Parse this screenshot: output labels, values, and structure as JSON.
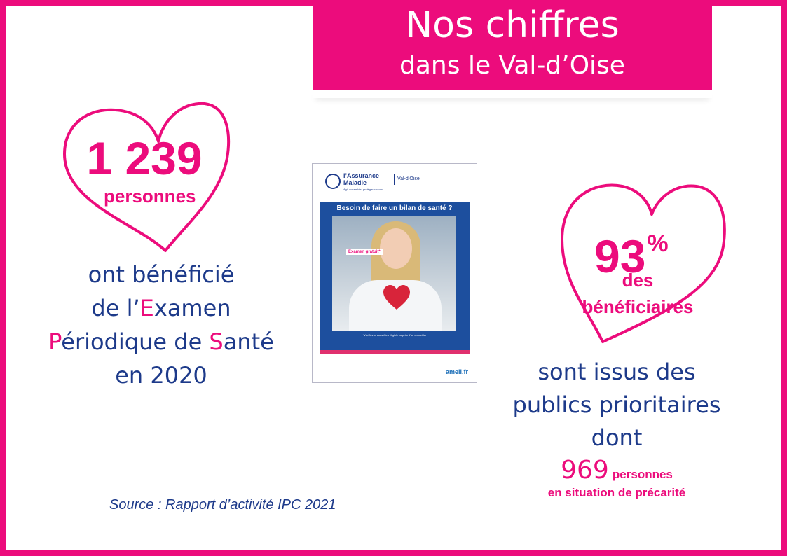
{
  "header": {
    "title_line1": "Nos chiffres",
    "title_line2": "dans le Val-d’Oise"
  },
  "stat1": {
    "number": "1 239",
    "unit": "personnes",
    "desc_line1": "ont bénéficié",
    "desc_line2_prefix": "de l’",
    "desc_line2_initial": "E",
    "desc_line2_rest": "xamen",
    "desc_line3_initial1": "P",
    "desc_line3_mid": "ériodique de ",
    "desc_line3_initial2": "S",
    "desc_line3_rest": "anté",
    "desc_line4": "en 2020"
  },
  "stat2": {
    "number": "93",
    "percent": "%",
    "unit_line1": "des",
    "unit_line2": "bénéficiaires",
    "desc_line1": "sont issus des",
    "desc_line2": "publics prioritaires",
    "desc_line3": "dont",
    "sub_number": "969",
    "sub_unit": "personnes",
    "sub_line2": "en situation de précarité"
  },
  "poster": {
    "brand_line1": "l’Assurance",
    "brand_line2": "Maladie",
    "tagline": "Agir ensemble, protéger chacun",
    "region": "Val-d’Oise",
    "heading": "Besoin de faire un bilan de santé ?",
    "badge": "Examen gratuit*",
    "note": "*Vérifiez si vous êtes éligible auprès d'un conseiller",
    "url": "ameli.fr"
  },
  "source": "Source : Rapport d’activité IPC 2021",
  "colors": {
    "accent_pink": "#ec0c7c",
    "text_blue": "#1d3a8a"
  }
}
